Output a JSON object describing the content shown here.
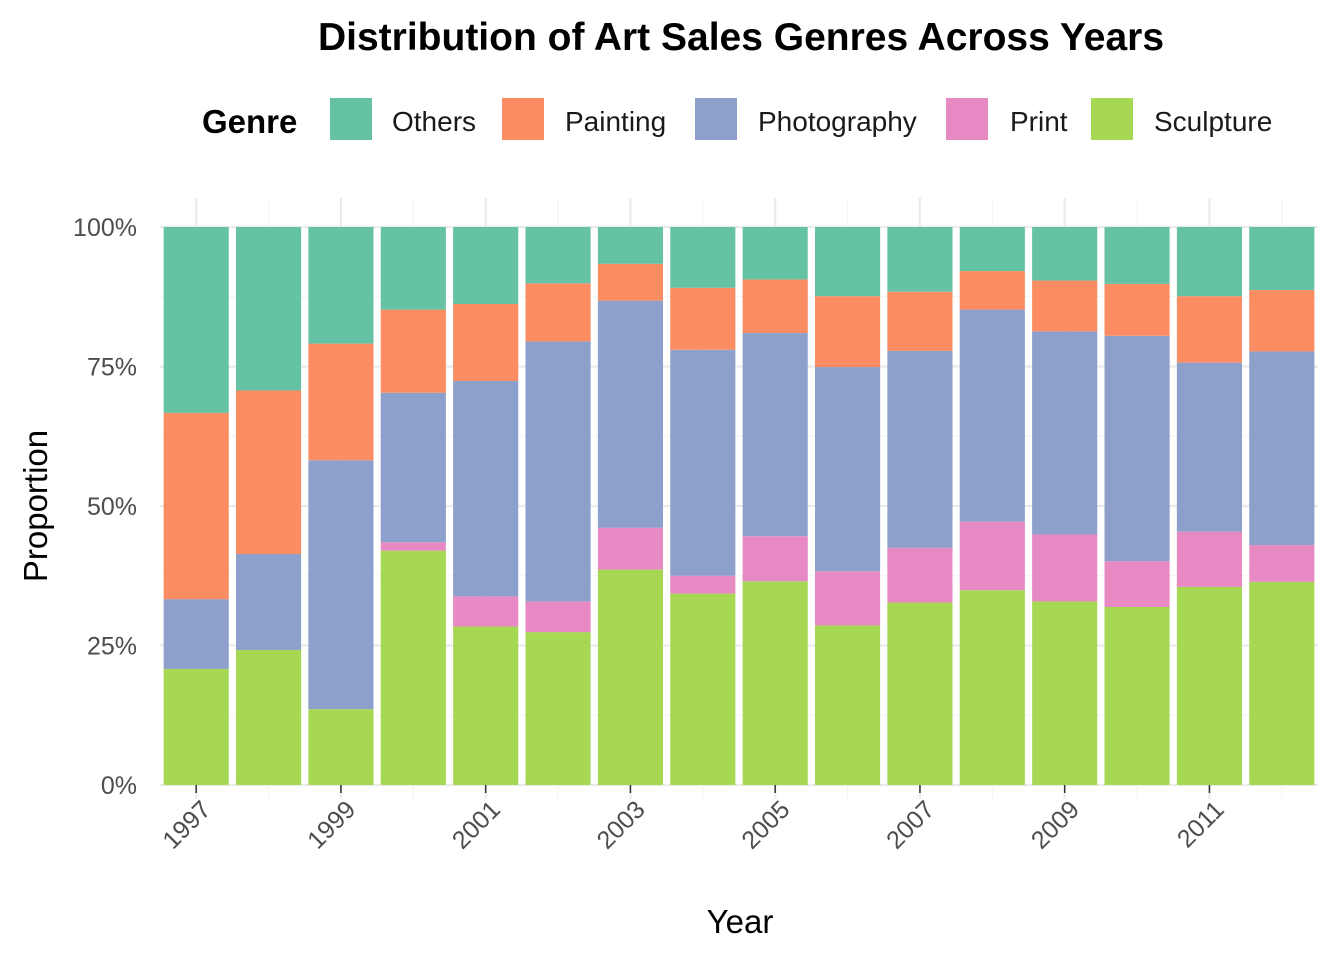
{
  "chart_data": {
    "type": "bar",
    "stacked": true,
    "title": "Distribution of Art Sales Genres Across Years",
    "xlabel": "Year",
    "ylabel": "Proportion",
    "ylim": [
      0,
      1
    ],
    "y_ticks": [
      0,
      0.25,
      0.5,
      0.75,
      1
    ],
    "y_tick_labels": [
      "0%",
      "25%",
      "50%",
      "75%",
      "100%"
    ],
    "x_tick_labels": [
      "1997",
      "1999",
      "2001",
      "2003",
      "2005",
      "2007",
      "2009",
      "2011"
    ],
    "legend_title": "Genre",
    "legend_position": "top",
    "grid": true,
    "categories": [
      "1997",
      "1998",
      "1999",
      "2000",
      "2001",
      "2002",
      "2003",
      "2004",
      "2005",
      "2006",
      "2007",
      "2008",
      "2009",
      "2010",
      "2011",
      "2012"
    ],
    "stack_order": [
      "Sculpture",
      "Print",
      "Photography",
      "Painting",
      "Others"
    ],
    "series": [
      {
        "name": "Others",
        "color": "#66C2A5",
        "values": [
          0.333,
          0.293,
          0.209,
          0.148,
          0.138,
          0.101,
          0.066,
          0.109,
          0.094,
          0.124,
          0.116,
          0.079,
          0.096,
          0.102,
          0.124,
          0.113
        ]
      },
      {
        "name": "Painting",
        "color": "#FC8D62",
        "values": [
          0.334,
          0.293,
          0.209,
          0.149,
          0.138,
          0.104,
          0.066,
          0.111,
          0.096,
          0.127,
          0.106,
          0.069,
          0.091,
          0.093,
          0.119,
          0.11
        ]
      },
      {
        "name": "Photography",
        "color": "#8DA0CB",
        "values": [
          0.125,
          0.172,
          0.446,
          0.268,
          0.386,
          0.466,
          0.407,
          0.405,
          0.364,
          0.366,
          0.353,
          0.38,
          0.364,
          0.404,
          0.303,
          0.347
        ]
      },
      {
        "name": "Print",
        "color": "#E78AC3",
        "values": [
          0,
          0,
          0,
          0.015,
          0.054,
          0.055,
          0.075,
          0.032,
          0.081,
          0.097,
          0.098,
          0.123,
          0.12,
          0.082,
          0.099,
          0.066
        ]
      },
      {
        "name": "Sculpture",
        "color": "#A6D854",
        "values": [
          0.208,
          0.242,
          0.136,
          0.42,
          0.284,
          0.274,
          0.386,
          0.343,
          0.365,
          0.286,
          0.327,
          0.349,
          0.329,
          0.319,
          0.355,
          0.364
        ]
      }
    ]
  }
}
